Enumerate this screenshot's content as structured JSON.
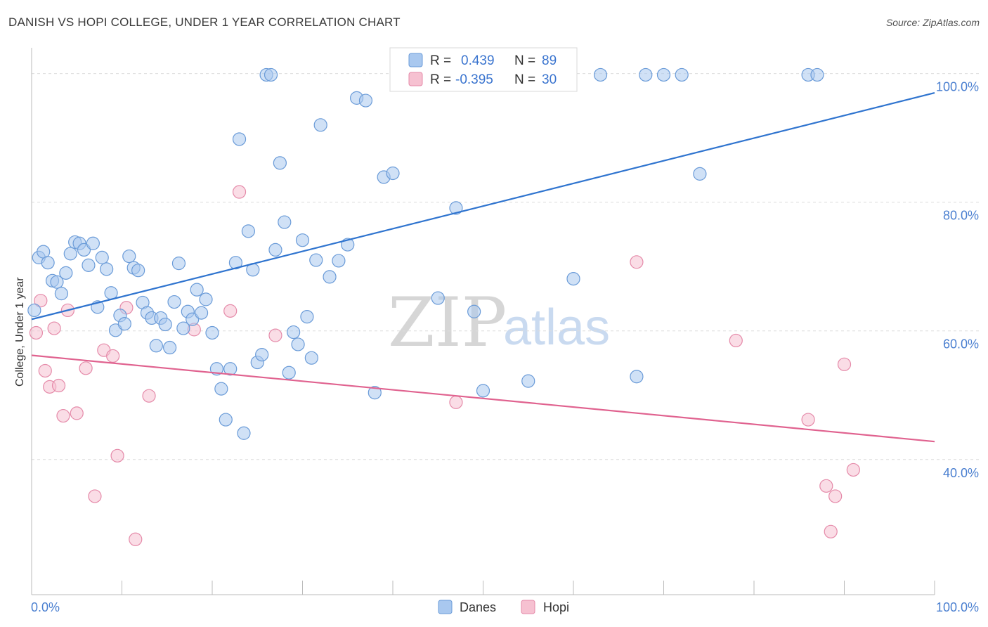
{
  "header": {
    "title": "DANISH VS HOPI COLLEGE, UNDER 1 YEAR CORRELATION CHART",
    "source": "Source: ZipAtlas.com"
  },
  "watermark": {
    "zip": "ZIP",
    "atlas": "atlas"
  },
  "legend": {
    "r_label": "R =",
    "n_label": "N =",
    "danes": {
      "r": "0.439",
      "n": "89"
    },
    "hopi": {
      "r": "-0.395",
      "n": "30"
    }
  },
  "bottom_legend": {
    "danes": "Danes",
    "hopi": "Hopi"
  },
  "colors": {
    "danes_fill": "#a9c8ef",
    "danes_stroke": "#6a9bd8",
    "danes_line": "#2f74cf",
    "hopi_fill": "#f6c1d1",
    "hopi_stroke": "#e58aa9",
    "hopi_line": "#e0628f",
    "grid": "#dcdcdc",
    "axis_text": "#4a7fd0"
  },
  "chart_data": {
    "type": "scatter",
    "title": "DANISH VS HOPI COLLEGE, UNDER 1 YEAR CORRELATION CHART",
    "xlabel": "",
    "ylabel": "College, Under 1 year",
    "xlim": [
      0,
      100
    ],
    "ylim": [
      19,
      104
    ],
    "x_tick_labels": [
      "0.0%",
      "100.0%"
    ],
    "y_ticks": [
      40,
      60,
      80,
      100
    ],
    "y_tick_labels": [
      "40.0%",
      "60.0%",
      "80.0%",
      "100.0%"
    ],
    "series": [
      {
        "name": "Danes",
        "r": 0.439,
        "n": 89,
        "trend": [
          [
            0,
            61.8
          ],
          [
            100,
            97
          ]
        ],
        "points": [
          [
            0.3,
            63.2
          ],
          [
            0.8,
            71.4
          ],
          [
            1.3,
            72.3
          ],
          [
            1.8,
            70.6
          ],
          [
            2.3,
            67.8
          ],
          [
            2.8,
            67.6
          ],
          [
            3.3,
            65.8
          ],
          [
            3.8,
            69.0
          ],
          [
            4.3,
            72.0
          ],
          [
            4.8,
            73.8
          ],
          [
            5.3,
            73.6
          ],
          [
            5.8,
            72.6
          ],
          [
            6.3,
            70.2
          ],
          [
            6.8,
            73.6
          ],
          [
            7.3,
            63.7
          ],
          [
            7.8,
            71.4
          ],
          [
            8.3,
            69.6
          ],
          [
            8.8,
            65.9
          ],
          [
            9.3,
            60.1
          ],
          [
            9.8,
            62.4
          ],
          [
            10.3,
            61.1
          ],
          [
            10.8,
            71.6
          ],
          [
            11.3,
            69.8
          ],
          [
            11.8,
            69.4
          ],
          [
            12.3,
            64.4
          ],
          [
            12.8,
            62.8
          ],
          [
            13.3,
            62.0
          ],
          [
            13.8,
            57.7
          ],
          [
            14.3,
            62.0
          ],
          [
            14.8,
            61.0
          ],
          [
            15.3,
            57.4
          ],
          [
            15.8,
            64.5
          ],
          [
            16.3,
            70.5
          ],
          [
            16.8,
            60.4
          ],
          [
            17.3,
            63.0
          ],
          [
            17.8,
            61.8
          ],
          [
            18.3,
            66.4
          ],
          [
            18.8,
            62.8
          ],
          [
            19.3,
            64.9
          ],
          [
            20.0,
            59.7
          ],
          [
            20.5,
            54.1
          ],
          [
            21.0,
            51.0
          ],
          [
            21.5,
            46.2
          ],
          [
            22.0,
            54.1
          ],
          [
            22.6,
            70.6
          ],
          [
            23.0,
            89.8
          ],
          [
            23.5,
            44.1
          ],
          [
            24.0,
            75.5
          ],
          [
            24.5,
            69.5
          ],
          [
            25.0,
            55.1
          ],
          [
            25.5,
            56.3
          ],
          [
            26.0,
            99.8
          ],
          [
            26.5,
            99.8
          ],
          [
            27.0,
            72.6
          ],
          [
            27.5,
            86.1
          ],
          [
            28.0,
            76.9
          ],
          [
            28.5,
            53.5
          ],
          [
            29.0,
            59.8
          ],
          [
            29.5,
            57.9
          ],
          [
            30.0,
            74.1
          ],
          [
            30.5,
            62.2
          ],
          [
            31.0,
            55.8
          ],
          [
            31.5,
            71.0
          ],
          [
            32.0,
            92.0
          ],
          [
            33.0,
            68.4
          ],
          [
            34.0,
            70.9
          ],
          [
            35.0,
            73.4
          ],
          [
            36.0,
            96.2
          ],
          [
            37.0,
            95.8
          ],
          [
            38.0,
            50.4
          ],
          [
            39.0,
            83.9
          ],
          [
            40.0,
            84.5
          ],
          [
            42.0,
            99.8
          ],
          [
            45.0,
            65.1
          ],
          [
            46.0,
            99.8
          ],
          [
            47.0,
            79.1
          ],
          [
            49.0,
            63.0
          ],
          [
            50.0,
            50.7
          ],
          [
            52.0,
            99.8
          ],
          [
            55.0,
            52.2
          ],
          [
            60.0,
            68.1
          ],
          [
            63.0,
            99.8
          ],
          [
            67.0,
            52.9
          ],
          [
            68.0,
            99.8
          ],
          [
            70.0,
            99.8
          ],
          [
            72.0,
            99.8
          ],
          [
            74.0,
            84.4
          ],
          [
            86.0,
            99.8
          ],
          [
            87.0,
            99.8
          ]
        ]
      },
      {
        "name": "Hopi",
        "r": -0.395,
        "n": 30,
        "trend": [
          [
            0,
            56.2
          ],
          [
            100,
            42.8
          ]
        ],
        "points": [
          [
            0.5,
            59.7
          ],
          [
            1.0,
            64.7
          ],
          [
            1.5,
            53.8
          ],
          [
            2.0,
            51.3
          ],
          [
            2.5,
            60.4
          ],
          [
            3.0,
            51.5
          ],
          [
            3.5,
            46.8
          ],
          [
            4.0,
            63.2
          ],
          [
            5.0,
            47.2
          ],
          [
            6.0,
            54.2
          ],
          [
            7.0,
            34.3
          ],
          [
            8.0,
            57.0
          ],
          [
            9.0,
            56.1
          ],
          [
            9.5,
            40.6
          ],
          [
            10.5,
            63.6
          ],
          [
            11.5,
            27.6
          ],
          [
            13.0,
            49.9
          ],
          [
            18.0,
            60.2
          ],
          [
            22.0,
            63.1
          ],
          [
            23.0,
            81.6
          ],
          [
            27.0,
            59.3
          ],
          [
            47.0,
            48.9
          ],
          [
            67.0,
            70.7
          ],
          [
            78.0,
            58.5
          ],
          [
            86.0,
            46.2
          ],
          [
            88.0,
            35.9
          ],
          [
            88.5,
            28.8
          ],
          [
            89.0,
            34.3
          ],
          [
            90.0,
            54.8
          ],
          [
            91.0,
            38.4
          ]
        ]
      }
    ]
  }
}
